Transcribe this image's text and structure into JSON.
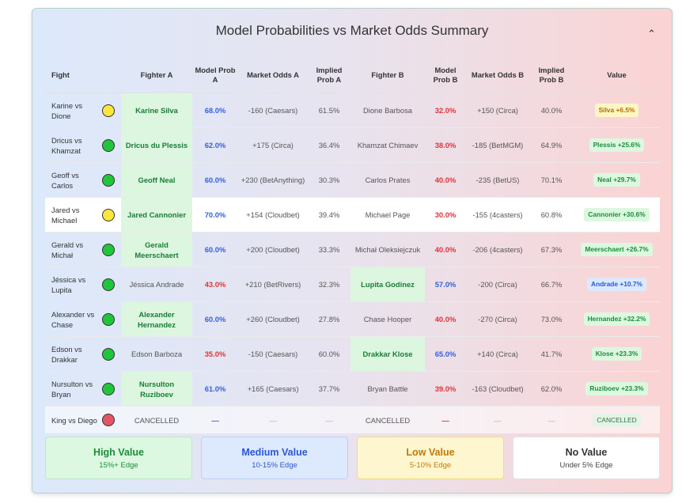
{
  "title": "Model Probabilities vs Market Odds Summary",
  "collapse_icon": "chevron-up-icon",
  "columns": [
    "Fight",
    "Fighter A",
    "Model Prob A",
    "Market Odds A",
    "Implied Prob A",
    "Fighter B",
    "Model Prob B",
    "Market Odds B",
    "Implied Prob B",
    "Value"
  ],
  "rows": [
    {
      "fight": "Karine vs Dione",
      "dot": "yellow",
      "fighter_a": "Karine Silva",
      "fav": "a",
      "prob_a": "68.0%",
      "prob_a_color": "blue",
      "odds_a": "-160 (Caesars)",
      "implied_a": "61.5%",
      "fighter_b": "Dione Barbosa",
      "prob_b": "32.0%",
      "prob_b_color": "red",
      "odds_b": "+150 (Circa)",
      "implied_b": "40.0%",
      "value": "Silva +6.5%",
      "value_level": "low"
    },
    {
      "fight": "Dricus vs Khamzat",
      "dot": "green",
      "fighter_a": "Dricus du Plessis",
      "fav": "a",
      "prob_a": "62.0%",
      "prob_a_color": "blue",
      "odds_a": "+175 (Circa)",
      "implied_a": "36.4%",
      "fighter_b": "Khamzat Chimaev",
      "prob_b": "38.0%",
      "prob_b_color": "red",
      "odds_b": "-185 (BetMGM)",
      "implied_b": "64.9%",
      "value": "Plessis +25.6%",
      "value_level": "high"
    },
    {
      "fight": "Geoff vs Carlos",
      "dot": "green",
      "fighter_a": "Geoff Neal",
      "fav": "a",
      "prob_a": "60.0%",
      "prob_a_color": "blue",
      "odds_a": "+230 (BetAnything)",
      "implied_a": "30.3%",
      "fighter_b": "Carlos Prates",
      "prob_b": "40.0%",
      "prob_b_color": "red",
      "odds_b": "-235 (BetUS)",
      "implied_b": "70.1%",
      "value": "Neal +29.7%",
      "value_level": "high"
    },
    {
      "fight": "Jared vs Michael",
      "dot": "yellow",
      "fighter_a": "Jared Cannonier",
      "fav": "a",
      "prob_a": "70.0%",
      "prob_a_color": "blue",
      "odds_a": "+154 (Cloudbet)",
      "implied_a": "39.4%",
      "fighter_b": "Michael Page",
      "prob_b": "30.0%",
      "prob_b_color": "red",
      "odds_b": "-155 (4casters)",
      "implied_b": "60.8%",
      "value": "Cannonier +30.6%",
      "value_level": "high",
      "highlight": true
    },
    {
      "fight": "Gerald vs Michał",
      "dot": "green",
      "fighter_a": "Gerald Meerschaert",
      "fav": "a",
      "prob_a": "60.0%",
      "prob_a_color": "blue",
      "odds_a": "+200 (Cloudbet)",
      "implied_a": "33.3%",
      "fighter_b": "Michał Oleksiejczuk",
      "prob_b": "40.0%",
      "prob_b_color": "red",
      "odds_b": "-206 (4casters)",
      "implied_b": "67.3%",
      "value": "Meerschaert +26.7%",
      "value_level": "high"
    },
    {
      "fight": "Jéssica vs Lupita",
      "dot": "green",
      "fighter_a": "Jéssica Andrade",
      "fav": "b",
      "prob_a": "43.0%",
      "prob_a_color": "red",
      "odds_a": "+210 (BetRivers)",
      "implied_a": "32.3%",
      "fighter_b": "Lupita Godinez",
      "prob_b": "57.0%",
      "prob_b_color": "blue",
      "odds_b": "-200 (Circa)",
      "implied_b": "66.7%",
      "value": "Andrade +10.7%",
      "value_level": "med"
    },
    {
      "fight": "Alexander vs Chase",
      "dot": "green",
      "fighter_a": "Alexander Hernandez",
      "fav": "a",
      "prob_a": "60.0%",
      "prob_a_color": "blue",
      "odds_a": "+260 (Cloudbet)",
      "implied_a": "27.8%",
      "fighter_b": "Chase Hooper",
      "prob_b": "40.0%",
      "prob_b_color": "red",
      "odds_b": "-270 (Circa)",
      "implied_b": "73.0%",
      "value": "Hernandez +32.2%",
      "value_level": "high"
    },
    {
      "fight": "Edson vs Drakkar",
      "dot": "green",
      "fighter_a": "Edson Barboza",
      "fav": "b",
      "prob_a": "35.0%",
      "prob_a_color": "red",
      "odds_a": "-150 (Caesars)",
      "implied_a": "60.0%",
      "fighter_b": "Drakkar Klose",
      "prob_b": "65.0%",
      "prob_b_color": "blue",
      "odds_b": "+140 (Circa)",
      "implied_b": "41.7%",
      "value": "Klose +23.3%",
      "value_level": "high"
    },
    {
      "fight": "Nursulton vs Bryan",
      "dot": "green",
      "fighter_a": "Nursulton Ruziboev",
      "fav": "a",
      "prob_a": "61.0%",
      "prob_a_color": "blue",
      "odds_a": "+165 (Caesars)",
      "implied_a": "37.7%",
      "fighter_b": "Bryan Battle",
      "prob_b": "39.0%",
      "prob_b_color": "red",
      "odds_b": "-163 (Cloudbet)",
      "implied_b": "62.0%",
      "value": "Ruziboev +23.3%",
      "value_level": "high"
    },
    {
      "fight": "King vs Diego",
      "dot": "red",
      "fighter_a": "CANCELLED",
      "fav": "a",
      "prob_a": "—",
      "prob_a_color": "blue",
      "odds_a": "—",
      "implied_a": "—",
      "fighter_b": "CANCELLED",
      "prob_b": "—",
      "prob_b_color": "red",
      "odds_b": "—",
      "implied_b": "—",
      "value": "CANCELLED",
      "value_level": "cancel",
      "cancelled": true
    }
  ],
  "legend": [
    {
      "title": "High Value",
      "subtitle": "15%+ Edge",
      "level": "high"
    },
    {
      "title": "Medium Value",
      "subtitle": "10-15% Edge",
      "level": "med"
    },
    {
      "title": "Low Value",
      "subtitle": "5-10% Edge",
      "level": "low"
    },
    {
      "title": "No Value",
      "subtitle": "Under 5% Edge",
      "level": "none"
    }
  ],
  "colors": {
    "high": "#1e8b3c",
    "medium": "#2b57d4",
    "low": "#c17a0a",
    "prob_favored": "#3461e0",
    "prob_underdog": "#e0333a"
  }
}
